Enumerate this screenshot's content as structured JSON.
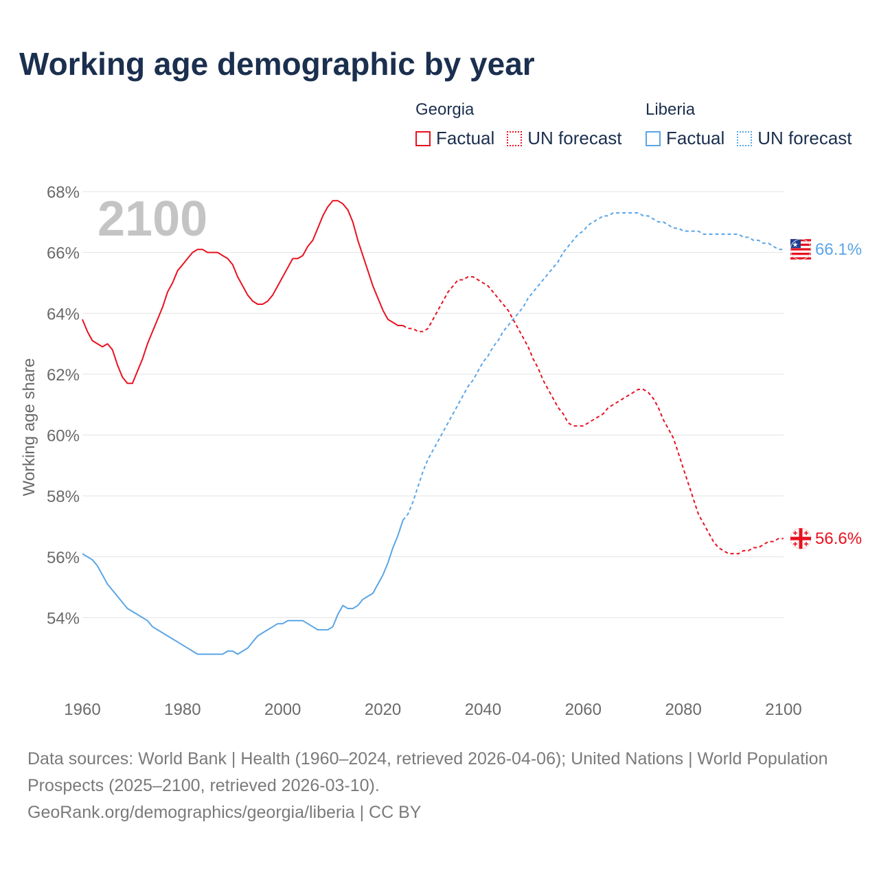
{
  "colors": {
    "georgia": "#e8111f",
    "liberia": "#5aa5e6",
    "title": "#1b2f4e",
    "grid": "#e3e3e3",
    "axis_text": "#6a6a6a",
    "year_watermark": "#c4c4c4"
  },
  "legend": {
    "georgia": {
      "name": "Georgia",
      "factual": "Factual",
      "forecast": "UN forecast"
    },
    "liberia": {
      "name": "Liberia",
      "factual": "Factual",
      "forecast": "UN forecast"
    }
  },
  "footer": {
    "sources": "Data sources: World Bank | Health (1960–2024, retrieved 2026-04-06); United Nations | World Population Prospects (2025–2100, retrieved 2026-03-10).",
    "link": "GeoRank.org/demographics/georgia/liberia | CC BY"
  },
  "chart_data": {
    "type": "line",
    "title": "Working age demographic by year",
    "xlabel": "",
    "ylabel": "Working age share",
    "year_display": "2100",
    "xlim": [
      1960,
      2100
    ],
    "ylim": [
      52,
      68
    ],
    "x_ticks": [
      "1960",
      "1980",
      "2000",
      "2020",
      "2040",
      "2060",
      "2080",
      "2100"
    ],
    "y_ticks": [
      "54%",
      "56%",
      "58%",
      "60%",
      "62%",
      "64%",
      "66%",
      "68%"
    ],
    "y_tick_values": [
      54,
      56,
      58,
      60,
      62,
      64,
      66,
      68
    ],
    "factual_end_year": 2024,
    "grid": true,
    "series": [
      {
        "name": "Georgia",
        "color_key": "georgia",
        "end_label": "56.6%",
        "flag_icon": "georgia-flag-icon",
        "points": [
          [
            1960,
            63.8
          ],
          [
            1961,
            63.4
          ],
          [
            1962,
            63.1
          ],
          [
            1963,
            63.0
          ],
          [
            1964,
            62.9
          ],
          [
            1965,
            63.0
          ],
          [
            1966,
            62.8
          ],
          [
            1967,
            62.3
          ],
          [
            1968,
            61.9
          ],
          [
            1969,
            61.7
          ],
          [
            1970,
            61.7
          ],
          [
            1971,
            62.1
          ],
          [
            1972,
            62.5
          ],
          [
            1973,
            63.0
          ],
          [
            1974,
            63.4
          ],
          [
            1975,
            63.8
          ],
          [
            1976,
            64.2
          ],
          [
            1977,
            64.7
          ],
          [
            1978,
            65.0
          ],
          [
            1979,
            65.4
          ],
          [
            1980,
            65.6
          ],
          [
            1981,
            65.8
          ],
          [
            1982,
            66.0
          ],
          [
            1983,
            66.1
          ],
          [
            1984,
            66.1
          ],
          [
            1985,
            66.0
          ],
          [
            1986,
            66.0
          ],
          [
            1987,
            66.0
          ],
          [
            1988,
            65.9
          ],
          [
            1989,
            65.8
          ],
          [
            1990,
            65.6
          ],
          [
            1991,
            65.2
          ],
          [
            1992,
            64.9
          ],
          [
            1993,
            64.6
          ],
          [
            1994,
            64.4
          ],
          [
            1995,
            64.3
          ],
          [
            1996,
            64.3
          ],
          [
            1997,
            64.4
          ],
          [
            1998,
            64.6
          ],
          [
            1999,
            64.9
          ],
          [
            2000,
            65.2
          ],
          [
            2001,
            65.5
          ],
          [
            2002,
            65.8
          ],
          [
            2003,
            65.8
          ],
          [
            2004,
            65.9
          ],
          [
            2005,
            66.2
          ],
          [
            2006,
            66.4
          ],
          [
            2007,
            66.8
          ],
          [
            2008,
            67.2
          ],
          [
            2009,
            67.5
          ],
          [
            2010,
            67.7
          ],
          [
            2011,
            67.7
          ],
          [
            2012,
            67.6
          ],
          [
            2013,
            67.4
          ],
          [
            2014,
            67.0
          ],
          [
            2015,
            66.4
          ],
          [
            2016,
            65.9
          ],
          [
            2017,
            65.4
          ],
          [
            2018,
            64.9
          ],
          [
            2019,
            64.5
          ],
          [
            2020,
            64.1
          ],
          [
            2021,
            63.8
          ],
          [
            2022,
            63.7
          ],
          [
            2023,
            63.6
          ],
          [
            2024,
            63.6
          ],
          [
            2025,
            63.5
          ],
          [
            2026,
            63.5
          ],
          [
            2027,
            63.4
          ],
          [
            2028,
            63.4
          ],
          [
            2029,
            63.5
          ],
          [
            2030,
            63.8
          ],
          [
            2031,
            64.1
          ],
          [
            2032,
            64.4
          ],
          [
            2033,
            64.7
          ],
          [
            2034,
            64.9
          ],
          [
            2035,
            65.1
          ],
          [
            2036,
            65.1
          ],
          [
            2037,
            65.2
          ],
          [
            2038,
            65.2
          ],
          [
            2039,
            65.1
          ],
          [
            2040,
            65.0
          ],
          [
            2041,
            64.9
          ],
          [
            2042,
            64.7
          ],
          [
            2043,
            64.5
          ],
          [
            2044,
            64.3
          ],
          [
            2045,
            64.1
          ],
          [
            2046,
            63.8
          ],
          [
            2047,
            63.5
          ],
          [
            2048,
            63.2
          ],
          [
            2049,
            62.9
          ],
          [
            2050,
            62.5
          ],
          [
            2051,
            62.2
          ],
          [
            2052,
            61.8
          ],
          [
            2053,
            61.5
          ],
          [
            2054,
            61.2
          ],
          [
            2055,
            60.9
          ],
          [
            2056,
            60.7
          ],
          [
            2057,
            60.4
          ],
          [
            2058,
            60.3
          ],
          [
            2059,
            60.3
          ],
          [
            2060,
            60.3
          ],
          [
            2061,
            60.4
          ],
          [
            2062,
            60.5
          ],
          [
            2063,
            60.6
          ],
          [
            2064,
            60.7
          ],
          [
            2065,
            60.9
          ],
          [
            2066,
            61.0
          ],
          [
            2067,
            61.1
          ],
          [
            2068,
            61.2
          ],
          [
            2069,
            61.3
          ],
          [
            2070,
            61.4
          ],
          [
            2071,
            61.5
          ],
          [
            2072,
            61.5
          ],
          [
            2073,
            61.4
          ],
          [
            2074,
            61.2
          ],
          [
            2075,
            60.9
          ],
          [
            2076,
            60.5
          ],
          [
            2077,
            60.2
          ],
          [
            2078,
            59.9
          ],
          [
            2079,
            59.4
          ],
          [
            2080,
            58.9
          ],
          [
            2081,
            58.4
          ],
          [
            2082,
            57.9
          ],
          [
            2083,
            57.4
          ],
          [
            2084,
            57.1
          ],
          [
            2085,
            56.8
          ],
          [
            2086,
            56.5
          ],
          [
            2087,
            56.3
          ],
          [
            2088,
            56.2
          ],
          [
            2089,
            56.1
          ],
          [
            2090,
            56.1
          ],
          [
            2091,
            56.1
          ],
          [
            2092,
            56.2
          ],
          [
            2093,
            56.2
          ],
          [
            2094,
            56.3
          ],
          [
            2095,
            56.3
          ],
          [
            2096,
            56.4
          ],
          [
            2097,
            56.5
          ],
          [
            2098,
            56.5
          ],
          [
            2099,
            56.6
          ],
          [
            2100,
            56.6
          ]
        ]
      },
      {
        "name": "Liberia",
        "color_key": "liberia",
        "end_label": "66.1%",
        "flag_icon": "liberia-flag-icon",
        "points": [
          [
            1960,
            56.1
          ],
          [
            1961,
            56.0
          ],
          [
            1962,
            55.9
          ],
          [
            1963,
            55.7
          ],
          [
            1964,
            55.4
          ],
          [
            1965,
            55.1
          ],
          [
            1966,
            54.9
          ],
          [
            1967,
            54.7
          ],
          [
            1968,
            54.5
          ],
          [
            1969,
            54.3
          ],
          [
            1970,
            54.2
          ],
          [
            1971,
            54.1
          ],
          [
            1972,
            54.0
          ],
          [
            1973,
            53.9
          ],
          [
            1974,
            53.7
          ],
          [
            1975,
            53.6
          ],
          [
            1976,
            53.5
          ],
          [
            1977,
            53.4
          ],
          [
            1978,
            53.3
          ],
          [
            1979,
            53.2
          ],
          [
            1980,
            53.1
          ],
          [
            1981,
            53.0
          ],
          [
            1982,
            52.9
          ],
          [
            1983,
            52.8
          ],
          [
            1984,
            52.8
          ],
          [
            1985,
            52.8
          ],
          [
            1986,
            52.8
          ],
          [
            1987,
            52.8
          ],
          [
            1988,
            52.8
          ],
          [
            1989,
            52.9
          ],
          [
            1990,
            52.9
          ],
          [
            1991,
            52.8
          ],
          [
            1992,
            52.9
          ],
          [
            1993,
            53.0
          ],
          [
            1994,
            53.2
          ],
          [
            1995,
            53.4
          ],
          [
            1996,
            53.5
          ],
          [
            1997,
            53.6
          ],
          [
            1998,
            53.7
          ],
          [
            1999,
            53.8
          ],
          [
            2000,
            53.8
          ],
          [
            2001,
            53.9
          ],
          [
            2002,
            53.9
          ],
          [
            2003,
            53.9
          ],
          [
            2004,
            53.9
          ],
          [
            2005,
            53.8
          ],
          [
            2006,
            53.7
          ],
          [
            2007,
            53.6
          ],
          [
            2008,
            53.6
          ],
          [
            2009,
            53.6
          ],
          [
            2010,
            53.7
          ],
          [
            2011,
            54.1
          ],
          [
            2012,
            54.4
          ],
          [
            2013,
            54.3
          ],
          [
            2014,
            54.3
          ],
          [
            2015,
            54.4
          ],
          [
            2016,
            54.6
          ],
          [
            2017,
            54.7
          ],
          [
            2018,
            54.8
          ],
          [
            2019,
            55.1
          ],
          [
            2020,
            55.4
          ],
          [
            2021,
            55.8
          ],
          [
            2022,
            56.3
          ],
          [
            2023,
            56.7
          ],
          [
            2024,
            57.2
          ],
          [
            2025,
            57.4
          ],
          [
            2026,
            57.8
          ],
          [
            2027,
            58.3
          ],
          [
            2028,
            58.8
          ],
          [
            2029,
            59.2
          ],
          [
            2030,
            59.5
          ],
          [
            2031,
            59.8
          ],
          [
            2032,
            60.1
          ],
          [
            2033,
            60.4
          ],
          [
            2034,
            60.7
          ],
          [
            2035,
            61.0
          ],
          [
            2036,
            61.3
          ],
          [
            2037,
            61.6
          ],
          [
            2038,
            61.8
          ],
          [
            2039,
            62.1
          ],
          [
            2040,
            62.4
          ],
          [
            2041,
            62.6
          ],
          [
            2042,
            62.9
          ],
          [
            2043,
            63.1
          ],
          [
            2044,
            63.4
          ],
          [
            2045,
            63.6
          ],
          [
            2046,
            63.8
          ],
          [
            2047,
            64.0
          ],
          [
            2048,
            64.2
          ],
          [
            2049,
            64.5
          ],
          [
            2050,
            64.7
          ],
          [
            2051,
            64.9
          ],
          [
            2052,
            65.1
          ],
          [
            2053,
            65.3
          ],
          [
            2054,
            65.5
          ],
          [
            2055,
            65.7
          ],
          [
            2056,
            66.0
          ],
          [
            2057,
            66.2
          ],
          [
            2058,
            66.4
          ],
          [
            2059,
            66.6
          ],
          [
            2060,
            66.7
          ],
          [
            2061,
            66.9
          ],
          [
            2062,
            67.0
          ],
          [
            2063,
            67.1
          ],
          [
            2064,
            67.2
          ],
          [
            2065,
            67.2
          ],
          [
            2066,
            67.3
          ],
          [
            2067,
            67.3
          ],
          [
            2068,
            67.3
          ],
          [
            2069,
            67.3
          ],
          [
            2070,
            67.3
          ],
          [
            2071,
            67.3
          ],
          [
            2072,
            67.2
          ],
          [
            2073,
            67.2
          ],
          [
            2074,
            67.1
          ],
          [
            2075,
            67.0
          ],
          [
            2076,
            67.0
          ],
          [
            2077,
            66.9
          ],
          [
            2078,
            66.8
          ],
          [
            2079,
            66.8
          ],
          [
            2080,
            66.7
          ],
          [
            2081,
            66.7
          ],
          [
            2082,
            66.7
          ],
          [
            2083,
            66.7
          ],
          [
            2084,
            66.6
          ],
          [
            2085,
            66.6
          ],
          [
            2086,
            66.6
          ],
          [
            2087,
            66.6
          ],
          [
            2088,
            66.6
          ],
          [
            2089,
            66.6
          ],
          [
            2090,
            66.6
          ],
          [
            2091,
            66.6
          ],
          [
            2092,
            66.5
          ],
          [
            2093,
            66.5
          ],
          [
            2094,
            66.4
          ],
          [
            2095,
            66.4
          ],
          [
            2096,
            66.3
          ],
          [
            2097,
            66.3
          ],
          [
            2098,
            66.2
          ],
          [
            2099,
            66.1
          ],
          [
            2100,
            66.1
          ]
        ]
      }
    ]
  }
}
